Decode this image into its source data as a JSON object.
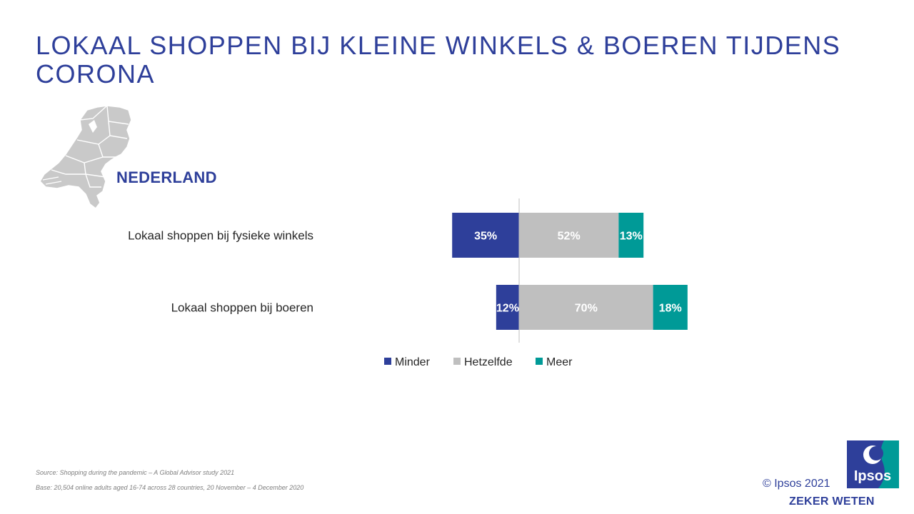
{
  "header": {
    "title": "LOKAAL SHOPPEN BIJ KLEINE WINKELS & BOEREN TIJDENS CORONA"
  },
  "country": {
    "label": "NEDERLAND"
  },
  "chart_data": {
    "type": "bar",
    "orientation": "horizontal",
    "stacked": true,
    "baseline": "between Minder and Hetzelfde",
    "categories": [
      "Lokaal shoppen bij fysieke winkels",
      "Lokaal shoppen bij boeren"
    ],
    "series": [
      {
        "name": "Minder",
        "values": [
          35,
          12
        ],
        "labels": [
          "35%",
          "12%"
        ],
        "color": "#2E3F9A"
      },
      {
        "name": "Hetzelfde",
        "values": [
          52,
          70
        ],
        "labels": [
          "52%",
          "70%"
        ],
        "color": "#BFBFBF"
      },
      {
        "name": "Meer",
        "values": [
          13,
          18
        ],
        "labels": [
          "13%",
          "18%"
        ],
        "color": "#009A97"
      }
    ],
    "unit": "%",
    "legend": "bottom"
  },
  "footer": {
    "source": "Source: Shopping during the pandemic – A Global Advisor study 2021",
    "base": "Base: 20,504 online adults aged 16-74 across 28 countries,  20 November – 4 December 2020",
    "copyright": "© Ipsos 2021",
    "tagline": "ZEKER WETEN",
    "logo_text": "Ipsos"
  }
}
